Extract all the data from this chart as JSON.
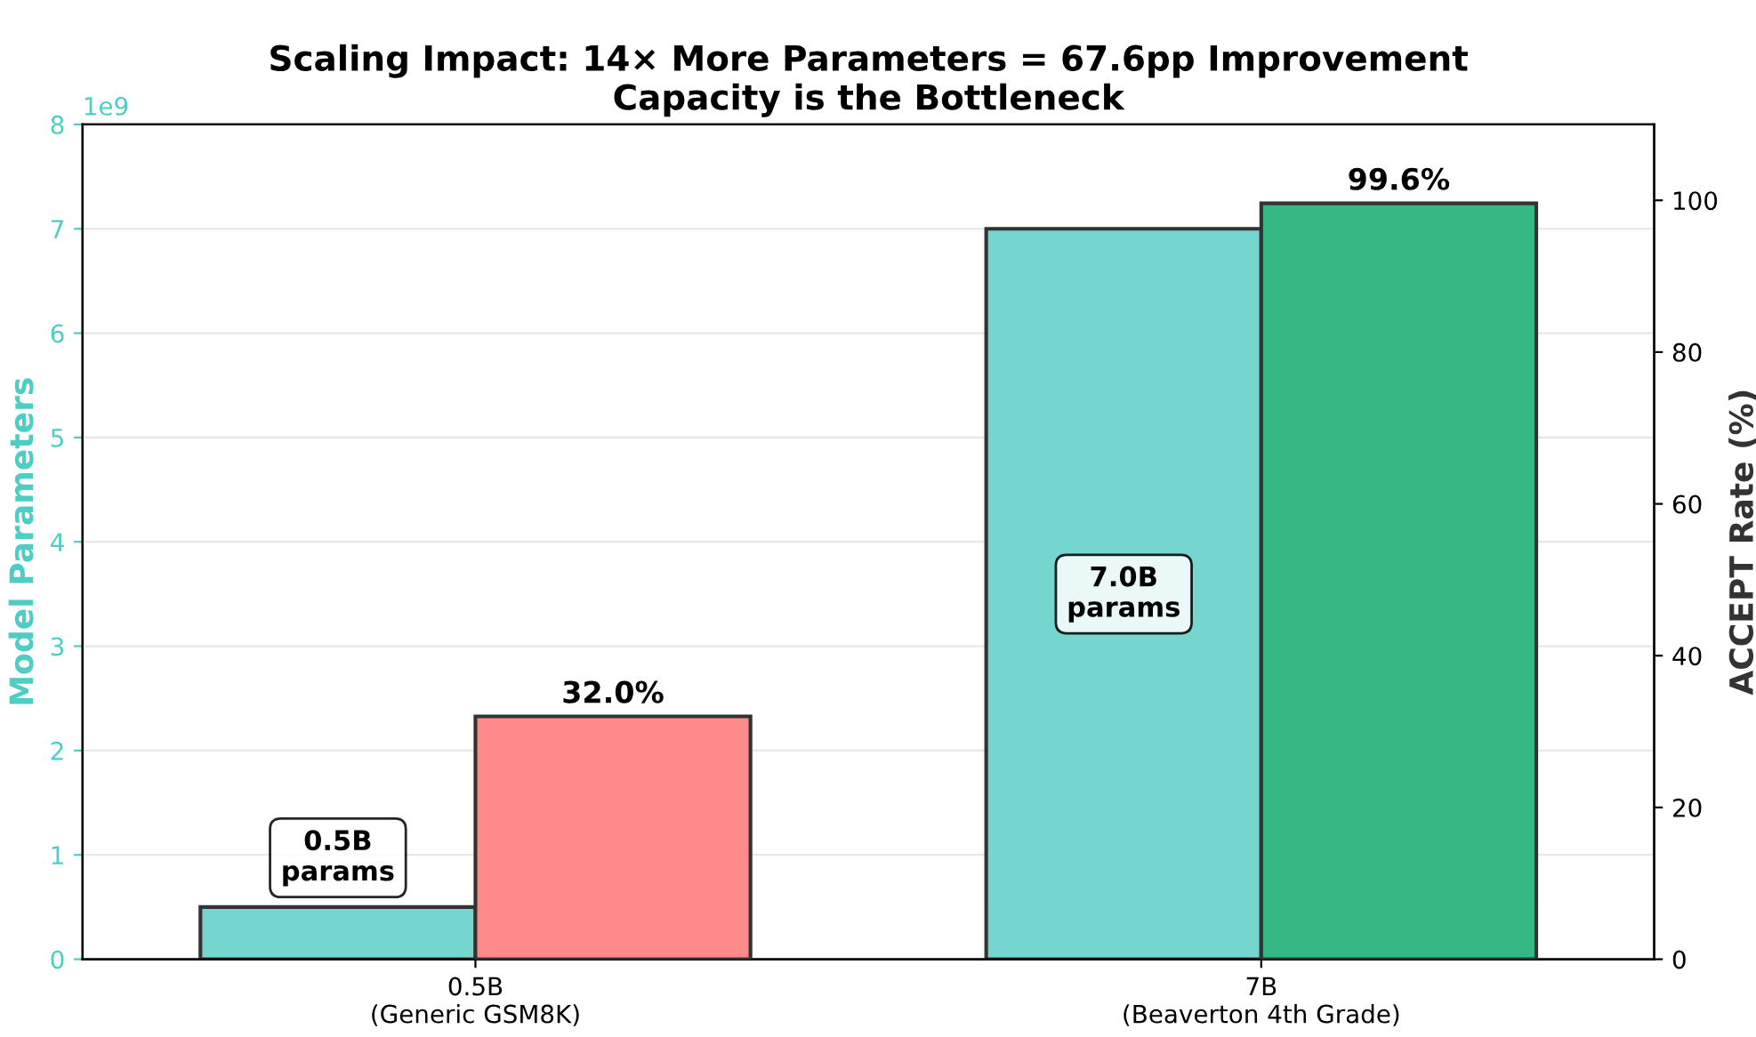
{
  "chart_data": {
    "type": "bar",
    "title": "Scaling Impact: 14× More Parameters = 67.6pp Improvement\nCapacity is the Bottleneck",
    "categories": [
      "0.5B\n(Generic GSM8K)",
      "7B\n(Beaverton 4th Grade)"
    ],
    "series": [
      {
        "color": "#74d6cf",
        "values": [
          0.5,
          7.0
        ],
        "value_labels": [
          "0.5B\nparams",
          "7.0B\nparams"
        ]
      },
      {
        "axis": "y2",
        "colors": [
          "#ff8a8a",
          "#34b985"
        ],
        "values": [
          32.0,
          99.6
        ],
        "value_labels": [
          "32.0%",
          "99.6%"
        ]
      }
    ],
    "ylabel": "Model Parameters",
    "y2label": "ACCEPT Rate (%)",
    "ylim": [
      0,
      8
    ],
    "yticks": [
      0,
      1,
      2,
      3,
      4,
      5,
      6,
      7,
      8
    ],
    "y2lim": [
      0,
      110
    ],
    "y2ticks": [
      0,
      20,
      40,
      60,
      80,
      100
    ],
    "annotations": [
      "1e9"
    ],
    "grid": "y",
    "legend": false
  }
}
